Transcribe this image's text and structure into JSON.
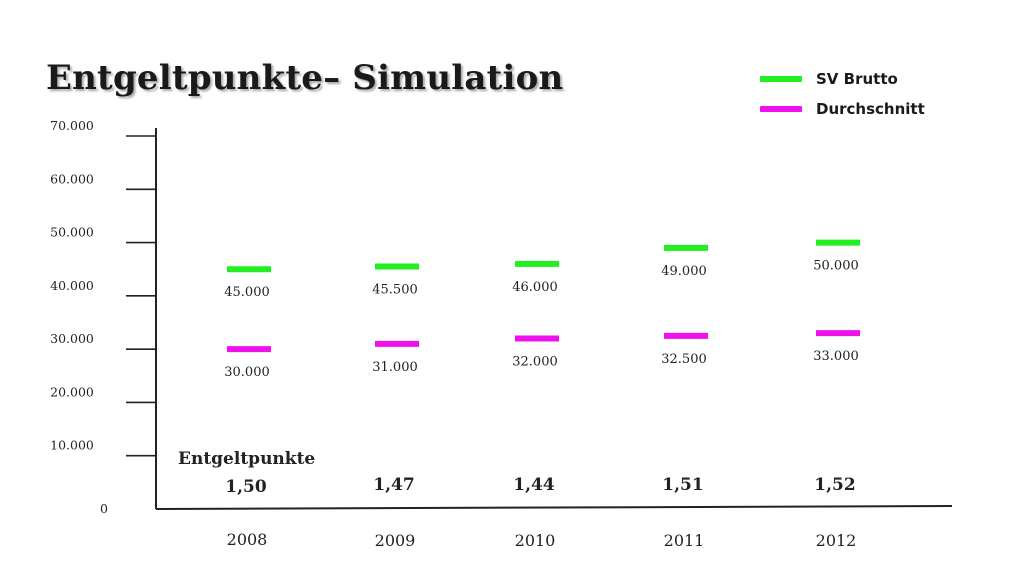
{
  "title": "Entgeltpunkte– Simulation",
  "legend": [
    {
      "label": "SV Brutto",
      "color": "#22ee22"
    },
    {
      "label": "Durchschnitt",
      "color": "#ee11ee"
    }
  ],
  "chart_data": {
    "type": "scatter",
    "categories": [
      "2008",
      "2009",
      "2010",
      "2011",
      "2012"
    ],
    "series": [
      {
        "name": "SV Brutto",
        "color": "#22ee22",
        "values": [
          45000,
          45500,
          46000,
          49000,
          50000
        ],
        "labels": [
          "45.000",
          "45.500",
          "46.000",
          "49.000",
          "50.000"
        ]
      },
      {
        "name": "Durchschnitt",
        "color": "#ee11ee",
        "values": [
          30000,
          31000,
          32000,
          32500,
          33000
        ],
        "labels": [
          "30.000",
          "31.000",
          "32.000",
          "32.500",
          "33.000"
        ]
      }
    ],
    "y_ticks": [
      0,
      10000,
      20000,
      30000,
      40000,
      50000,
      60000,
      70000
    ],
    "y_tick_labels": [
      "0",
      "10.000",
      "20.000",
      "30.000",
      "40.000",
      "50.000",
      "60.000",
      "70.000"
    ],
    "ylim": [
      0,
      70000
    ],
    "grid": false,
    "legend_position": "top-right",
    "annotation_title": "Entgeltpunkte",
    "entgeltpunkte": [
      "1,50",
      "1,47",
      "1,44",
      "1,51",
      "1,52"
    ]
  }
}
